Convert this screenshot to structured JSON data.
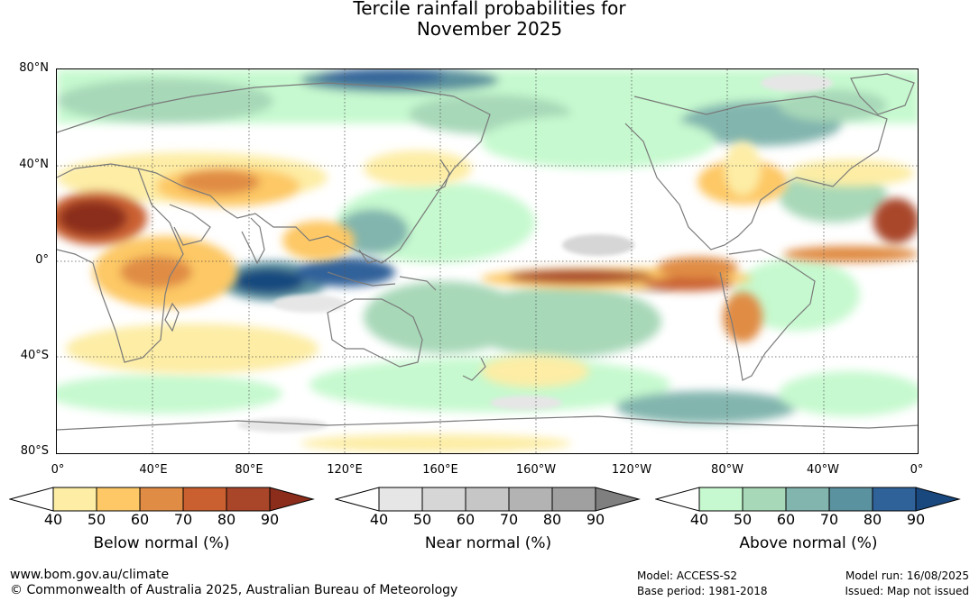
{
  "title": {
    "line1": "Tercile rainfall probabilities for",
    "line2": "November 2025"
  },
  "map": {
    "latitude_labels": [
      "80°N",
      "40°N",
      "0°",
      "40°S",
      "80°S"
    ],
    "longitude_labels": [
      "0°",
      "40°E",
      "80°E",
      "120°E",
      "160°E",
      "160°W",
      "120°W",
      "80°W",
      "40°W",
      "0°"
    ],
    "ocean_color": "#ffffff",
    "coastline_color": "#7a7a7a",
    "gridline_color": "#555555"
  },
  "colorbars": [
    {
      "label": "Below normal (%)",
      "ticks": [
        "40",
        "50",
        "60",
        "70",
        "80",
        "90"
      ],
      "colors": [
        "#ffffff",
        "#fdeda5",
        "#fdc865",
        "#e08c45",
        "#ca6030",
        "#a9462a",
        "#8c2d1c"
      ]
    },
    {
      "label": "Near normal (%)",
      "ticks": [
        "40",
        "50",
        "60",
        "70",
        "80",
        "90"
      ],
      "colors": [
        "#ffffff",
        "#e6e6e6",
        "#d6d6d6",
        "#c6c6c6",
        "#b3b3b3",
        "#a0a0a0",
        "#7f7f7f"
      ]
    },
    {
      "label": "Above normal (%)",
      "ticks": [
        "40",
        "50",
        "60",
        "70",
        "80",
        "90"
      ],
      "colors": [
        "#ffffff",
        "#c6f9cf",
        "#a7d8b8",
        "#82b5ae",
        "#5b929f",
        "#30629a",
        "#18487e"
      ]
    }
  ],
  "footer": {
    "website": "www.bom.gov.au/climate",
    "copyright": "© Commonwealth of Australia 2025, Australian Bureau of Meteorology",
    "model": "Model: ACCESS-S2",
    "base_period": "Base period: 1981-2018",
    "model_run": "Model run: 16/08/2025",
    "issued": "Issued: Map not issued"
  }
}
